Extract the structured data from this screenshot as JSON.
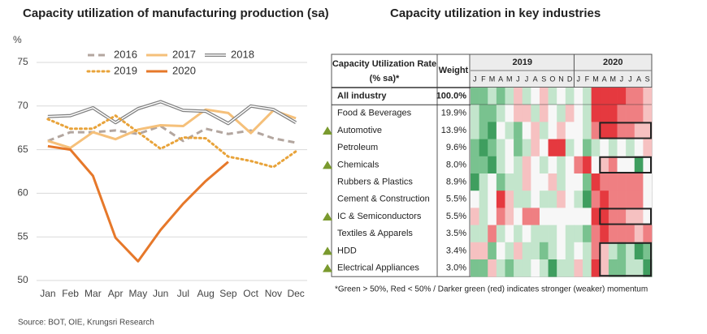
{
  "chart_data": [
    {
      "type": "line",
      "title": "Capacity utilization of manufacturing production (sa)",
      "ylabel": "%",
      "x": [
        "Jan",
        "Feb",
        "Mar",
        "Apr",
        "May",
        "Jun",
        "Jul",
        "Aug",
        "Sep",
        "Oct",
        "Nov",
        "Dec"
      ],
      "ylim": [
        50,
        75
      ],
      "yticks": [
        50,
        55,
        60,
        65,
        70,
        75
      ],
      "grid": true,
      "legend": "top",
      "series": [
        {
          "name": "2016",
          "color": "#b3a69f",
          "style": "dashed",
          "values": [
            66.0,
            67.0,
            67.0,
            67.2,
            66.8,
            67.7,
            66.0,
            67.4,
            66.8,
            67.2,
            66.3,
            65.8
          ]
        },
        {
          "name": "2017",
          "color": "#f5c07a",
          "style": "solid",
          "values": [
            66.0,
            65.2,
            67.0,
            66.2,
            67.3,
            67.8,
            67.7,
            69.6,
            69.2,
            66.9,
            69.5,
            68.6
          ]
        },
        {
          "name": "2018",
          "color": "#808080",
          "style": "double",
          "values": [
            68.8,
            68.9,
            69.8,
            68.1,
            69.7,
            70.5,
            69.5,
            69.4,
            68.0,
            70.0,
            69.6,
            68.1
          ]
        },
        {
          "name": "2019",
          "color": "#e8a33a",
          "style": "dotted",
          "values": [
            68.5,
            67.4,
            67.4,
            68.9,
            67.0,
            65.1,
            66.4,
            66.3,
            64.2,
            63.7,
            63.0,
            64.8
          ]
        },
        {
          "name": "2020",
          "color": "#e6782a",
          "style": "solid-thick",
          "values": [
            65.4,
            65.0,
            62.0,
            54.9,
            52.2,
            55.8,
            58.8,
            61.4,
            63.6,
            null,
            null,
            null
          ]
        }
      ]
    },
    {
      "type": "heatmap",
      "title": "Capacity utilization in key industries",
      "header": {
        "name": [
          "Capacity Utilization Rate",
          "(% sa)*"
        ],
        "weight": "Weight",
        "years": [
          "2019",
          "2020"
        ],
        "months": [
          "J",
          "F",
          "M",
          "A",
          "M",
          "J",
          "J",
          "A",
          "S",
          "O",
          "N",
          "D",
          "J",
          "F",
          "M",
          "A",
          "M",
          "J",
          "J",
          "A",
          "S"
        ]
      },
      "palette": {
        "D": "#3f9e5f",
        "G": "#79c28f",
        "g": "#c3e5cc",
        "w": "#f7f7f7",
        "r": "#f6c1c1",
        "R": "#ef7f82",
        "X": "#e5393f"
      },
      "highlight_color": "#7a9a2e",
      "rows": [
        {
          "name": "All industry",
          "weight": "100.0%",
          "bold": true,
          "highlight": false,
          "cells": "GGgGgrgwrgwgwgXXXXRRr"
        },
        {
          "name": "Food & Beverages",
          "weight": "19.9%",
          "highlight": false,
          "cells": "gGGgwrrgrwgrwgXXXRRRr"
        },
        {
          "name": "Automotive",
          "weight": "13.9%",
          "highlight": true,
          "cells": "gGDwgGwrgwrwwgRXXRRrr"
        },
        {
          "name": "Petroleum",
          "weight": "9.6%",
          "highlight": false,
          "cells": "GDGgwGgrwXXgwGgwgwgwr"
        },
        {
          "name": "Chemicals",
          "weight": "8.0%",
          "highlight": true,
          "cells": "GGDgwgrwgwgwRXwrRwwDw"
        },
        {
          "name": "Rubbers & Plastics",
          "weight": "8.9%",
          "highlight": false,
          "cells": "DgwGggrwwrgwwGXRRRRRw"
        },
        {
          "name": "Cement & Construction",
          "weight": "5.5%",
          "highlight": false,
          "cells": "wgwXrggwggrwgDRXRRRRw"
        },
        {
          "name": "IC & Semiconductors",
          "weight": "5.5%",
          "highlight": true,
          "cells": "rgwRrwRRwwwwwwXXRRrrw"
        },
        {
          "name": "Textiles & Apparels",
          "weight": "3.5%",
          "highlight": false,
          "cells": "ggRgwgwgggwggGRXRRRrR"
        },
        {
          "name": "HDD",
          "weight": "3.4%",
          "highlight": true,
          "cells": "rrGwgrggGgwgwgRrgGgDG"
        },
        {
          "name": "Electrical Appliances",
          "weight": "3.0%",
          "highlight": true,
          "cells": "GGrgGggwgDggrgXrGGggD"
        }
      ],
      "footnote": "*Green > 50%, Red < 50% / Darker green (red) indicates stronger (weaker) momentum"
    }
  ],
  "source": "Source: BOT, OIE, Krungsri Research"
}
